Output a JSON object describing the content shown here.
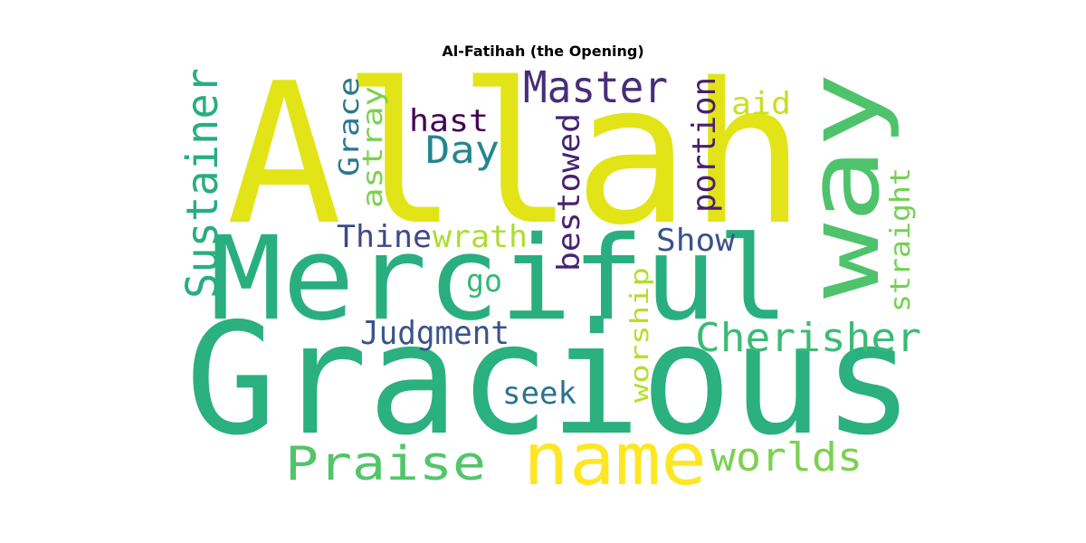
{
  "title": "Al-Fatihah (the Opening)",
  "words": [
    {
      "text": "Allah",
      "color": "#e2e418",
      "orientation": "horizontal"
    },
    {
      "text": "Merciful",
      "color": "#29af7f",
      "orientation": "horizontal"
    },
    {
      "text": "Gracious",
      "color": "#2bb07f",
      "orientation": "horizontal"
    },
    {
      "text": "way",
      "color": "#4ec36b",
      "orientation": "vertical"
    },
    {
      "text": "Master",
      "color": "#472d7b",
      "orientation": "horizontal"
    },
    {
      "text": "Sustainer",
      "color": "#28ae80",
      "orientation": "vertical"
    },
    {
      "text": "Grace",
      "color": "#2a788e",
      "orientation": "vertical"
    },
    {
      "text": "astray",
      "color": "#7ad151",
      "orientation": "vertical"
    },
    {
      "text": "hast",
      "color": "#440154",
      "orientation": "horizontal"
    },
    {
      "text": "Day",
      "color": "#25858e",
      "orientation": "horizontal"
    },
    {
      "text": "bestowed",
      "color": "#482173",
      "orientation": "vertical"
    },
    {
      "text": "portion",
      "color": "#481f70",
      "orientation": "vertical"
    },
    {
      "text": "aid",
      "color": "#c8e020",
      "orientation": "horizontal"
    },
    {
      "text": "straight",
      "color": "#75d054",
      "orientation": "vertical"
    },
    {
      "text": "Thine",
      "color": "#3e4989",
      "orientation": "horizontal"
    },
    {
      "text": "wrath",
      "color": "#addc30",
      "orientation": "horizontal"
    },
    {
      "text": "Show",
      "color": "#3b528b",
      "orientation": "horizontal"
    },
    {
      "text": "go",
      "color": "#35b779",
      "orientation": "horizontal"
    },
    {
      "text": "worship",
      "color": "#b5de2b",
      "orientation": "vertical"
    },
    {
      "text": "Judgment",
      "color": "#3a548c",
      "orientation": "horizontal"
    },
    {
      "text": "Cherisher",
      "color": "#3bbb75",
      "orientation": "horizontal"
    },
    {
      "text": "seek",
      "color": "#2c728e",
      "orientation": "horizontal"
    },
    {
      "text": "Praise",
      "color": "#52c569",
      "orientation": "horizontal"
    },
    {
      "text": "name",
      "color": "#fde725",
      "orientation": "horizontal"
    },
    {
      "text": "worlds",
      "color": "#7ad151",
      "orientation": "horizontal"
    }
  ]
}
